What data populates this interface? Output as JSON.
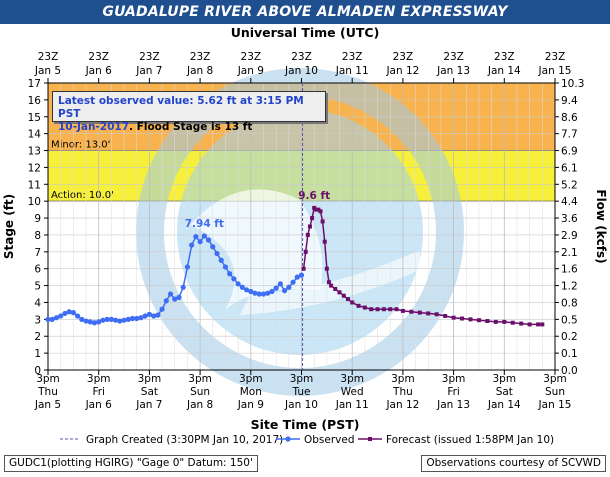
{
  "title": "GUADALUPE RIVER ABOVE ALMADEN EXPRESSWAY",
  "top_axis_title": "Universal Time (UTC)",
  "bottom_axis_title": "Site Time (PST)",
  "left_axis_title": "Stage (ft)",
  "right_axis_title": "Flow (kcfs)",
  "info_box": {
    "line1": "Latest observed value: 5.62 ft at 3:15 PM PST",
    "line2_date": "10-Jan-2017",
    "line2_rest": ". Flood Stage is 13 ft"
  },
  "legend": {
    "created": "Graph Created (3:30PM Jan 10, 2017)",
    "observed": "Observed",
    "forecast": "Forecast (issued 1:58PM Jan 10)"
  },
  "footer": {
    "left": "GUDC1(plotting HGIRG) \"Gage 0\" Datum: 150'",
    "right": "Observations courtesy of SCVWD"
  },
  "colors": {
    "title_bg": "#1f4f8f",
    "moderate_band": "#f8b34f",
    "minor_band": "#f7f03a",
    "observed": "#3f6df3",
    "forecast": "#6b0f6b",
    "created_line": "#5555aa"
  },
  "watermark": "NOAA seal",
  "chart_data": {
    "type": "line",
    "x_unit": "hours after Jan 5 3pm PST",
    "ylim": [
      0,
      17
    ],
    "y_ticks": [
      0,
      1,
      2,
      3,
      4,
      5,
      6,
      7,
      8,
      9,
      10,
      11,
      12,
      13,
      14,
      15,
      16,
      17
    ],
    "flow_ticks": [
      {
        "stage": 0,
        "label": "0.0"
      },
      {
        "stage": 1,
        "label": "0.1"
      },
      {
        "stage": 2,
        "label": "0.2"
      },
      {
        "stage": 3,
        "label": "0.5"
      },
      {
        "stage": 4,
        "label": "0.8"
      },
      {
        "stage": 5,
        "label": "1.2"
      },
      {
        "stage": 6,
        "label": "1.6"
      },
      {
        "stage": 7,
        "label": "2.1"
      },
      {
        "stage": 8,
        "label": "2.9"
      },
      {
        "stage": 9,
        "label": "3.6"
      },
      {
        "stage": 10,
        "label": "4.4"
      },
      {
        "stage": 11,
        "label": "5.2"
      },
      {
        "stage": 12,
        "label": "6.1"
      },
      {
        "stage": 13,
        "label": "6.9"
      },
      {
        "stage": 14,
        "label": "7.7"
      },
      {
        "stage": 15,
        "label": "8.6"
      },
      {
        "stage": 16,
        "label": "9.4"
      },
      {
        "stage": 17,
        "label": "10.3"
      }
    ],
    "bottom_ticks": [
      {
        "top": "3pm",
        "mid": "Thu",
        "bot": "Jan 5"
      },
      {
        "top": "3pm",
        "mid": "Fri",
        "bot": "Jan 6"
      },
      {
        "top": "3pm",
        "mid": "Sat",
        "bot": "Jan 7"
      },
      {
        "top": "3pm",
        "mid": "Sun",
        "bot": "Jan 8"
      },
      {
        "top": "3pm",
        "mid": "Mon",
        "bot": "Jan 9"
      },
      {
        "top": "3pm",
        "mid": "Tue",
        "bot": "Jan 10"
      },
      {
        "top": "3pm",
        "mid": "Wed",
        "bot": "Jan 11"
      },
      {
        "top": "3pm",
        "mid": "Thu",
        "bot": "Jan 12"
      },
      {
        "top": "3pm",
        "mid": "Fri",
        "bot": "Jan 13"
      },
      {
        "top": "3pm",
        "mid": "Sat",
        "bot": "Jan 14"
      },
      {
        "top": "3pm",
        "mid": "Sun",
        "bot": "Jan 15"
      }
    ],
    "top_ticks": [
      {
        "top": "23Z",
        "bot": "Jan 5"
      },
      {
        "top": "23Z",
        "bot": "Jan 6"
      },
      {
        "top": "23Z",
        "bot": "Jan 7"
      },
      {
        "top": "23Z",
        "bot": "Jan 8"
      },
      {
        "top": "23Z",
        "bot": "Jan 9"
      },
      {
        "top": "23Z",
        "bot": "Jan 10"
      },
      {
        "top": "23Z",
        "bot": "Jan 11"
      },
      {
        "top": "23Z",
        "bot": "Jan 12"
      },
      {
        "top": "23Z",
        "bot": "Jan 13"
      },
      {
        "top": "23Z",
        "bot": "Jan 14"
      },
      {
        "top": "23Z",
        "bot": "Jan 15"
      }
    ],
    "bands": [
      {
        "name": "Moderate",
        "from": 13,
        "to": 17,
        "label": ""
      },
      {
        "name": "Minor",
        "from": 10,
        "to": 13,
        "label": "Minor: 13.0'"
      },
      {
        "name": "Action",
        "from": 10,
        "to": 10,
        "label": "Action: 10.0'"
      }
    ],
    "created_hours": 120.5,
    "series": [
      {
        "name": "Observed",
        "x": [
          0,
          2,
          4,
          6,
          8,
          10,
          12,
          14,
          16,
          18,
          20,
          22,
          24,
          26,
          28,
          30,
          32,
          34,
          36,
          38,
          40,
          42,
          44,
          46,
          48,
          50,
          52,
          54,
          56,
          58,
          60,
          62,
          64,
          66,
          68,
          70,
          72,
          74,
          76,
          78,
          80,
          82,
          84,
          86,
          88,
          90,
          92,
          94,
          96,
          98,
          100,
          102,
          104,
          106,
          108,
          110,
          112,
          114,
          116,
          118,
          120
        ],
        "y": [
          3.0,
          3.0,
          3.1,
          3.2,
          3.35,
          3.45,
          3.4,
          3.2,
          3.0,
          2.9,
          2.85,
          2.8,
          2.85,
          2.95,
          3.0,
          3.0,
          2.95,
          2.9,
          2.95,
          3.0,
          3.05,
          3.05,
          3.1,
          3.2,
          3.3,
          3.2,
          3.25,
          3.6,
          4.1,
          4.5,
          4.2,
          4.3,
          4.9,
          6.1,
          7.4,
          7.9,
          7.6,
          7.94,
          7.7,
          7.3,
          6.9,
          6.5,
          6.1,
          5.7,
          5.4,
          5.1,
          4.9,
          4.75,
          4.65,
          4.55,
          4.5,
          4.5,
          4.55,
          4.65,
          4.85,
          5.1,
          4.7,
          4.9,
          5.2,
          5.5,
          5.62
        ]
      },
      {
        "name": "Forecast",
        "x": [
          121,
          122,
          123,
          124,
          125,
          126,
          127,
          128,
          129,
          130,
          131,
          132,
          133,
          134,
          136,
          138,
          140,
          142,
          144,
          147,
          150,
          153,
          156,
          159,
          162,
          165,
          168,
          172,
          176,
          180,
          184,
          188,
          192,
          196,
          200,
          204,
          208,
          212,
          216,
          220,
          224,
          228,
          232,
          234
        ],
        "y": [
          6.0,
          7.0,
          8.0,
          8.5,
          9.0,
          9.6,
          9.5,
          9.5,
          9.4,
          8.8,
          7.6,
          6.0,
          5.2,
          5.0,
          4.8,
          4.6,
          4.4,
          4.2,
          4.0,
          3.8,
          3.7,
          3.6,
          3.6,
          3.6,
          3.6,
          3.6,
          3.5,
          3.45,
          3.4,
          3.35,
          3.3,
          3.2,
          3.1,
          3.05,
          3.0,
          2.95,
          2.9,
          2.85,
          2.85,
          2.8,
          2.75,
          2.7,
          2.7,
          2.7
        ]
      }
    ],
    "annotations": [
      {
        "text": "7.94 ft",
        "x": 74,
        "y": 7.94,
        "series": "Observed"
      },
      {
        "text": "9.6 ft",
        "x": 126,
        "y": 9.6,
        "series": "Forecast"
      }
    ]
  }
}
